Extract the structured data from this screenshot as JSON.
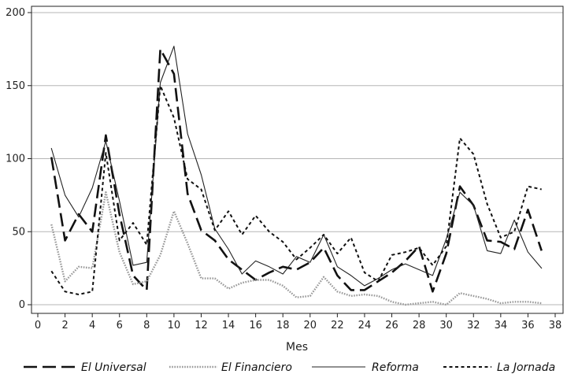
{
  "chart_data": {
    "type": "line",
    "title": "",
    "xlabel": "Mes",
    "ylabel": "",
    "xlim": [
      0,
      38
    ],
    "ylim": [
      0,
      200
    ],
    "xticks": [
      0,
      2,
      4,
      6,
      8,
      10,
      12,
      14,
      16,
      18,
      20,
      22,
      24,
      26,
      28,
      30,
      32,
      34,
      36,
      38
    ],
    "yticks": [
      0,
      50,
      100,
      150,
      200
    ],
    "grid": "horizontal",
    "legend_position": "bottom",
    "x": [
      1,
      2,
      3,
      4,
      5,
      6,
      7,
      8,
      9,
      10,
      11,
      12,
      13,
      14,
      15,
      16,
      17,
      18,
      19,
      20,
      21,
      22,
      23,
      24,
      25,
      26,
      27,
      28,
      29,
      30,
      31,
      32,
      33,
      34,
      35,
      36,
      37
    ],
    "series": [
      {
        "name": "El Universal",
        "style": "long-dash",
        "color": "#111111",
        "values": [
          101,
          44,
          62,
          50,
          116,
          62,
          20,
          10,
          175,
          158,
          76,
          51,
          44,
          31,
          24,
          17,
          22,
          26,
          24,
          29,
          39,
          20,
          10,
          10,
          16,
          22,
          30,
          40,
          9,
          35,
          81,
          68,
          44,
          43,
          38,
          65,
          37
        ]
      },
      {
        "name": "El Financiero",
        "style": "dotted-light",
        "color": "#999999",
        "values": [
          55,
          16,
          26,
          25,
          77,
          36,
          14,
          16,
          34,
          64,
          42,
          18,
          18,
          11,
          15,
          17,
          17,
          13,
          5,
          6,
          19,
          9,
          6,
          7,
          6,
          2,
          0,
          1,
          2,
          0,
          8,
          6,
          4,
          1,
          2,
          2,
          1
        ]
      },
      {
        "name": "Reforma",
        "style": "solid-thin",
        "color": "#222222",
        "values": [
          107,
          75,
          60,
          80,
          112,
          71,
          27,
          29,
          152,
          177,
          117,
          89,
          52,
          38,
          21,
          30,
          26,
          21,
          33,
          29,
          48,
          26,
          20,
          13,
          18,
          24,
          28,
          24,
          20,
          45,
          77,
          68,
          37,
          35,
          58,
          36,
          25
        ]
      },
      {
        "name": "La Jornada",
        "style": "short-dash",
        "color": "#111111",
        "values": [
          23,
          9,
          7,
          9,
          104,
          44,
          56,
          41,
          150,
          128,
          86,
          79,
          51,
          64,
          48,
          61,
          50,
          43,
          31,
          39,
          48,
          35,
          46,
          22,
          16,
          34,
          36,
          39,
          27,
          40,
          114,
          103,
          69,
          46,
          50,
          81,
          79
        ]
      }
    ]
  }
}
